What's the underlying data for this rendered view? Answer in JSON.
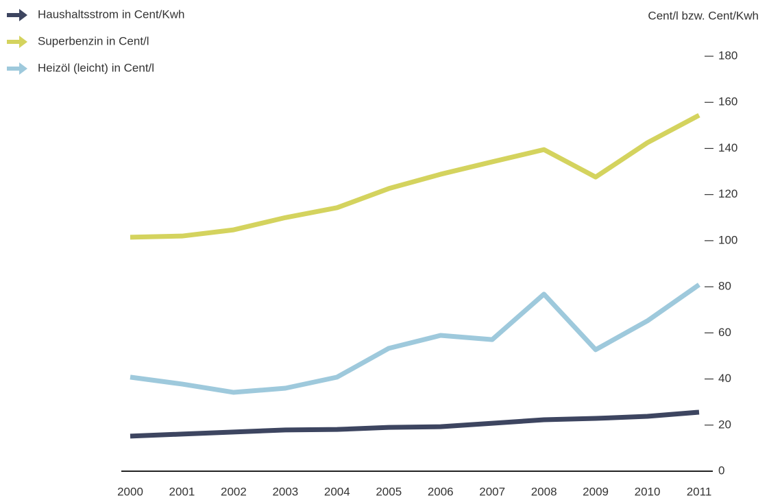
{
  "chart_data": {
    "type": "line",
    "y_label": "Cent/l bzw. Cent/Kwh",
    "categories": [
      "2000",
      "2001",
      "2002",
      "2003",
      "2004",
      "2005",
      "2006",
      "2007",
      "2008",
      "2009",
      "2010",
      "2011"
    ],
    "series": [
      {
        "name": "Haushaltsstrom in Cent/Kwh",
        "color": "#3d4560",
        "values": [
          15.2,
          16.1,
          17.0,
          17.9,
          18.1,
          19.0,
          19.3,
          20.8,
          22.3,
          22.9,
          23.8,
          25.6
        ]
      },
      {
        "name": "Superbenzin in Cent/l",
        "color": "#d4d35e",
        "values": [
          101.5,
          102.0,
          104.7,
          110.0,
          114.3,
          122.6,
          128.8,
          134.2,
          139.5,
          127.6,
          142.5,
          154.4
        ]
      },
      {
        "name": "Heizöl (leicht) in Cent/l",
        "color": "#9ec9dc",
        "values": [
          40.8,
          37.8,
          34.2,
          36.0,
          40.8,
          53.3,
          58.9,
          57.1,
          76.8,
          52.7,
          65.2,
          80.9
        ]
      }
    ],
    "ylim": [
      0,
      180
    ],
    "yticks": [
      0,
      20,
      40,
      60,
      80,
      100,
      120,
      140,
      160,
      180
    ],
    "legend": "top-left"
  }
}
